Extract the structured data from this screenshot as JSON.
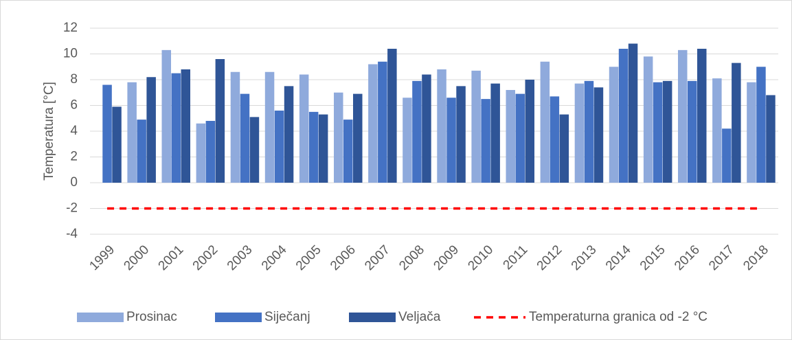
{
  "chart_data": {
    "type": "bar",
    "y_label": "Temperatura [°C]",
    "categories": [
      "1999",
      "2000",
      "2001",
      "2002",
      "2003",
      "2004",
      "2005",
      "2006",
      "2007",
      "2008",
      "2009",
      "2010",
      "2011",
      "2012",
      "2013",
      "2014",
      "2015",
      "2016",
      "2017",
      "2018"
    ],
    "series": [
      {
        "name": "Prosinac",
        "color": "#8faadc",
        "type": "bar",
        "values": [
          null,
          7.8,
          10.3,
          4.6,
          8.6,
          8.6,
          8.4,
          7.0,
          9.2,
          6.6,
          8.8,
          8.7,
          7.2,
          9.4,
          7.7,
          9.0,
          9.8,
          10.3,
          8.1,
          7.8
        ]
      },
      {
        "name": "Siječanj",
        "color": "#4472c4",
        "type": "bar",
        "values": [
          7.6,
          4.9,
          8.5,
          4.8,
          6.9,
          5.6,
          5.5,
          4.9,
          9.4,
          7.9,
          6.6,
          6.5,
          6.9,
          6.7,
          7.9,
          10.4,
          7.8,
          7.9,
          4.2,
          9.0
        ]
      },
      {
        "name": "Veljača",
        "color": "#2f5597",
        "type": "bar",
        "values": [
          5.9,
          8.2,
          8.8,
          9.6,
          5.1,
          7.5,
          5.3,
          6.9,
          10.4,
          8.4,
          7.5,
          7.7,
          8.0,
          5.3,
          7.4,
          10.8,
          7.9,
          10.4,
          9.3,
          6.8
        ]
      },
      {
        "name": "Temperaturna granica od -2 °C",
        "color": "#ff0000",
        "type": "line",
        "dashed": true,
        "values": [
          -2,
          -2,
          -2,
          -2,
          -2,
          -2,
          -2,
          -2,
          -2,
          -2,
          -2,
          -2,
          -2,
          -2,
          -2,
          -2,
          -2,
          -2,
          -2,
          -2
        ]
      }
    ],
    "ylim": [
      -4,
      12
    ],
    "yticks": [
      -4,
      -2,
      0,
      2,
      4,
      6,
      8,
      10,
      12
    ],
    "grid": true,
    "legend": "bottom"
  }
}
